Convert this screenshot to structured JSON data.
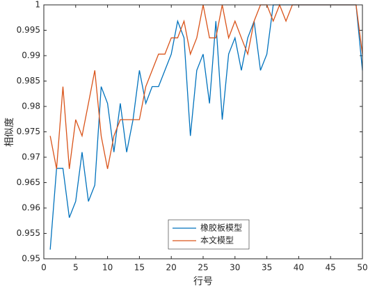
{
  "chart_data": {
    "type": "line",
    "xlabel": "行号",
    "ylabel": "相似度",
    "x": [
      1,
      2,
      3,
      4,
      5,
      6,
      7,
      8,
      9,
      10,
      11,
      12,
      13,
      14,
      15,
      16,
      17,
      18,
      19,
      20,
      21,
      22,
      23,
      24,
      25,
      26,
      27,
      28,
      29,
      30,
      31,
      32,
      33,
      34,
      35,
      36,
      37,
      38,
      39,
      40,
      41,
      42,
      43,
      44,
      45,
      46,
      47,
      48,
      49,
      50
    ],
    "series": [
      {
        "name": "橡胶板模型",
        "color": "#0072bd",
        "values": [
          0.9518,
          0.9678,
          0.9678,
          0.9581,
          0.9613,
          0.971,
          0.9613,
          0.9645,
          0.9839,
          0.9806,
          0.971,
          0.9806,
          0.971,
          0.9774,
          0.9871,
          0.9806,
          0.9839,
          0.9839,
          0.9871,
          0.9903,
          0.9968,
          0.9935,
          0.9742,
          0.9871,
          0.9903,
          0.9806,
          0.9968,
          0.9774,
          0.9903,
          0.9935,
          0.9871,
          0.9935,
          0.9968,
          0.9871,
          0.9903,
          1,
          1,
          1,
          1,
          1,
          1,
          1,
          1,
          1,
          1,
          1,
          1,
          1,
          1,
          0.9871
        ]
      },
      {
        "name": "本文模型",
        "color": "#d95319",
        "values": [
          0.9742,
          0.9677,
          0.9839,
          0.9677,
          0.9774,
          0.9742,
          0.9806,
          0.9871,
          0.9742,
          0.9677,
          0.9742,
          0.9774,
          0.9774,
          0.9774,
          0.9774,
          0.9839,
          0.9871,
          0.9903,
          0.9903,
          0.9935,
          0.9935,
          0.9968,
          0.9903,
          0.9935,
          1,
          0.9935,
          0.9935,
          1,
          0.9935,
          0.9968,
          0.9935,
          0.9903,
          0.9968,
          1,
          1,
          0.9968,
          1,
          0.9968,
          1,
          1,
          1,
          1,
          1,
          1,
          1,
          1,
          1,
          1,
          1,
          0.9903
        ]
      }
    ],
    "xlim": [
      0,
      50
    ],
    "xticks": [
      0,
      5,
      10,
      15,
      20,
      25,
      30,
      35,
      40,
      45,
      50
    ],
    "ylim": [
      0.95,
      1
    ],
    "yticks": [
      0.95,
      0.955,
      0.96,
      0.965,
      0.97,
      0.975,
      0.98,
      0.985,
      0.99,
      0.995,
      1
    ],
    "grid": false,
    "legend": "lower center"
  }
}
